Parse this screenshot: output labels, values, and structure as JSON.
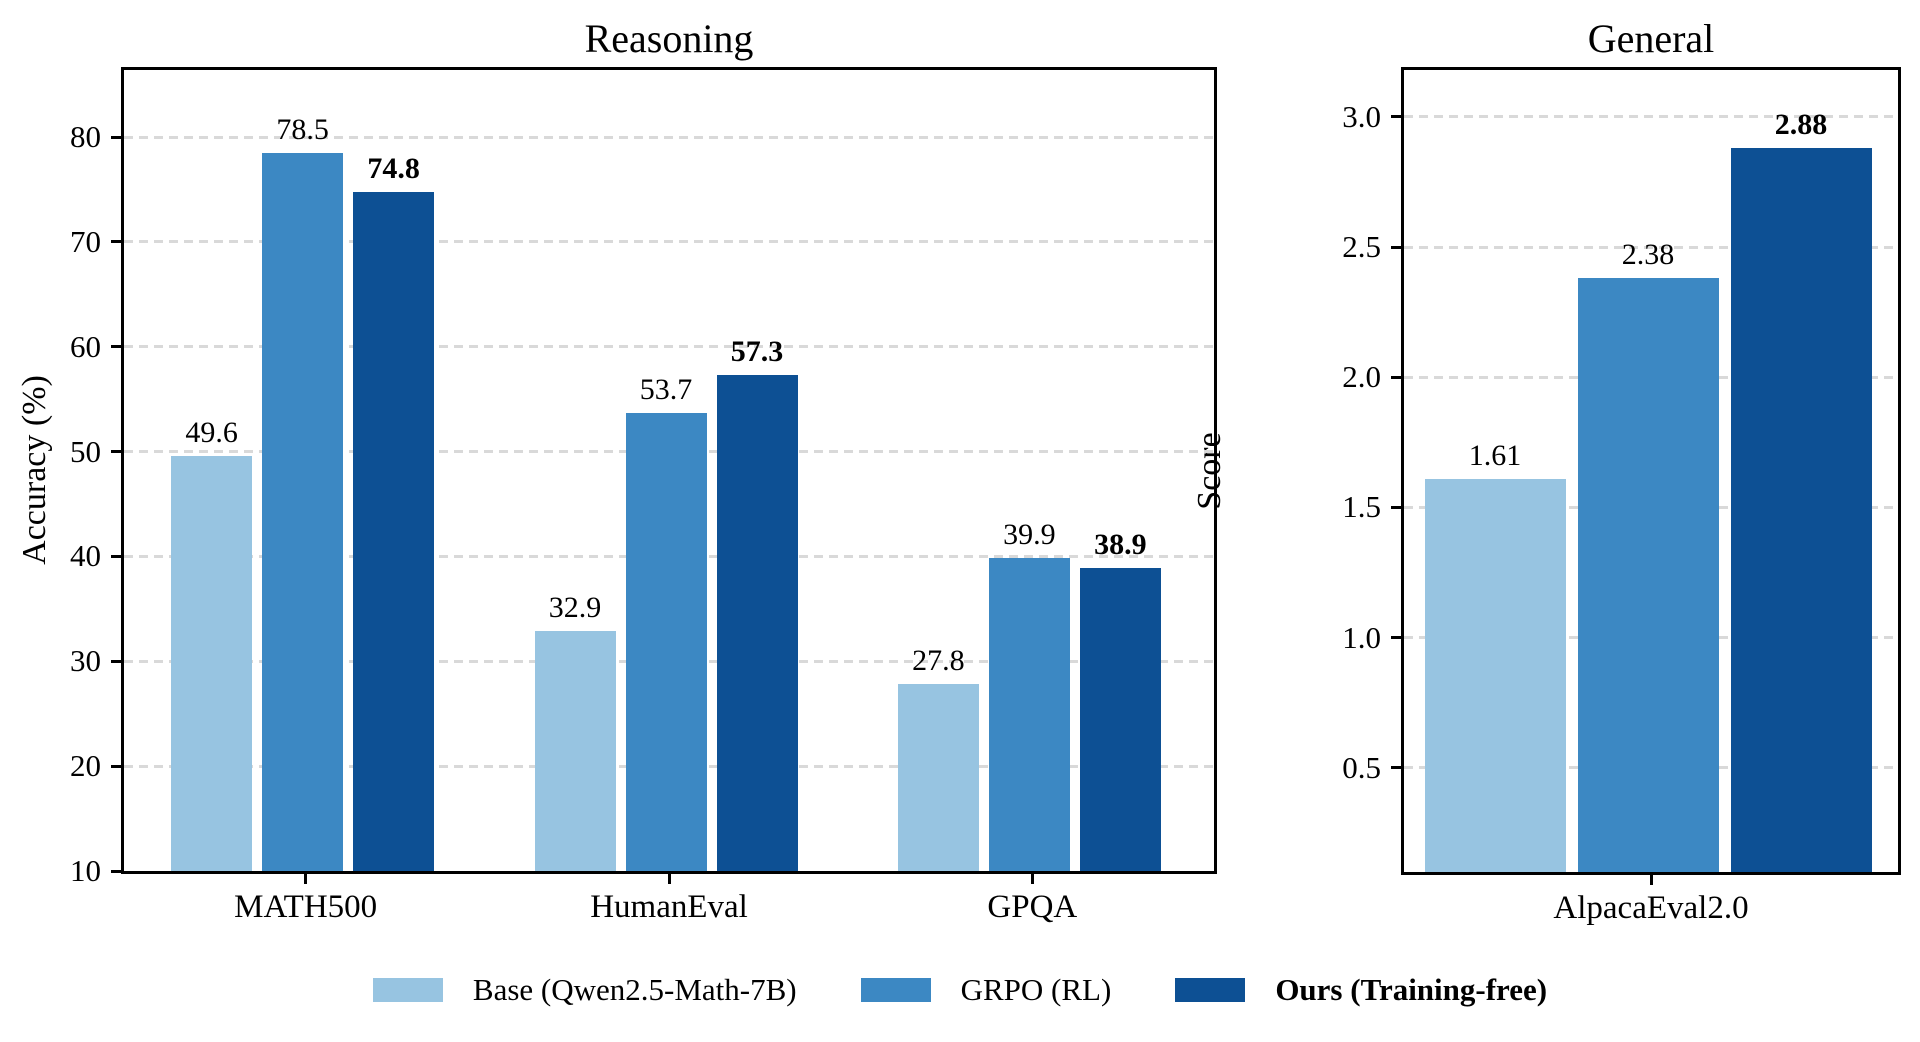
{
  "figure": {
    "background": "#ffffff"
  },
  "colors": {
    "series_light": "#97c4e1",
    "series_medium": "#3c88c3",
    "series_dark": "#0d5094",
    "grid": "#d9d9d9",
    "axis": "#000000",
    "text": "#000000"
  },
  "chart_data": [
    {
      "type": "bar",
      "title": "Reasoning",
      "xlabel": "",
      "ylabel": "Accuracy (%)",
      "categories": [
        "MATH500",
        "HumanEval",
        "GPQA"
      ],
      "series": [
        {
          "name": "Base (Qwen2.5-Math-7B)",
          "color": "#97c4e1",
          "values": [
            49.6,
            32.9,
            27.8
          ],
          "bold_value_labels": false
        },
        {
          "name": "GRPO (RL)",
          "color": "#3c88c3",
          "values": [
            78.5,
            53.7,
            39.9
          ],
          "bold_value_labels": false
        },
        {
          "name": "Ours (Training-free)",
          "color": "#0d5094",
          "values": [
            74.8,
            57.3,
            38.9
          ],
          "bold_value_labels": true
        }
      ],
      "ylim": [
        10,
        86.4
      ],
      "yticks": [
        "10",
        "20",
        "30",
        "40",
        "50",
        "60",
        "70",
        "80"
      ],
      "grid": "horizontal-dashed"
    },
    {
      "type": "bar",
      "title": "General",
      "xlabel": "",
      "ylabel": "Score",
      "categories": [
        "AlpacaEval2.0"
      ],
      "series": [
        {
          "name": "Base (Qwen2.5-Math-7B)",
          "color": "#97c4e1",
          "values": [
            1.61
          ],
          "bold_value_labels": false
        },
        {
          "name": "GRPO (RL)",
          "color": "#3c88c3",
          "values": [
            2.38
          ],
          "bold_value_labels": false
        },
        {
          "name": "Ours (Training-free)",
          "color": "#0d5094",
          "values": [
            2.88
          ],
          "bold_value_labels": true
        }
      ],
      "ylim": [
        0.1,
        3.18
      ],
      "yticks": [
        "0.5",
        "1.0",
        "1.5",
        "2.0",
        "2.5",
        "3.0"
      ],
      "grid": "horizontal-dashed"
    }
  ],
  "legend": {
    "items": [
      {
        "label": "Base (Qwen2.5-Math-7B)",
        "color": "#97c4e1",
        "bold": false
      },
      {
        "label": "GRPO (RL)",
        "color": "#3c88c3",
        "bold": false
      },
      {
        "label": "Ours (Training-free)",
        "color": "#0d5094",
        "bold": true
      }
    ]
  }
}
